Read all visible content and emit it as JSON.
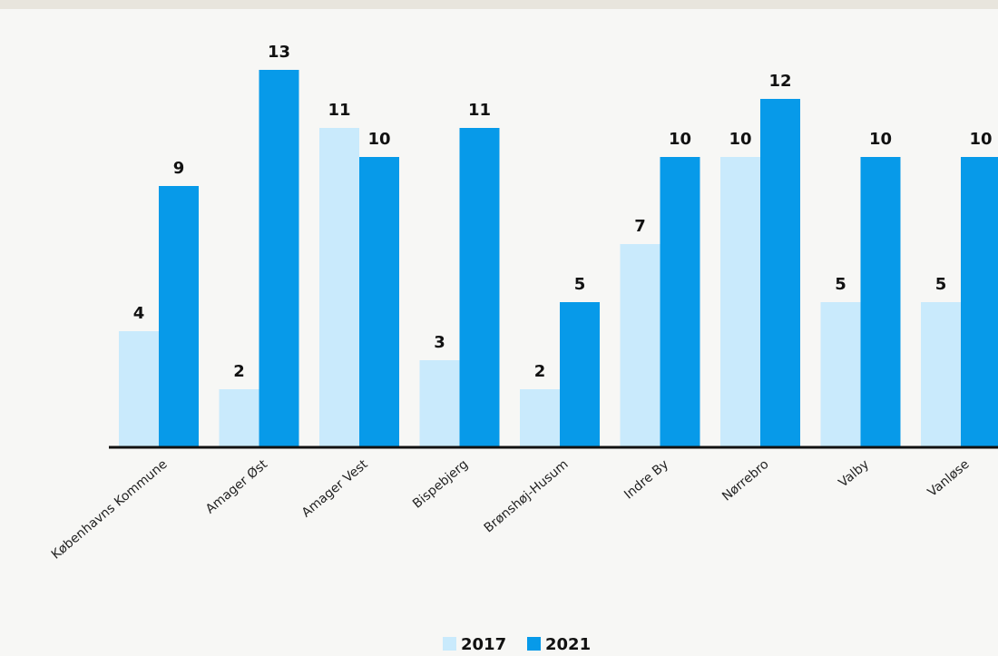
{
  "chart_data": {
    "type": "bar",
    "categories": [
      "Københavns Kommune",
      "Amager Øst",
      "Amager Vest",
      "Bispebjerg",
      "Brønshøj-Husum",
      "Indre By",
      "Nørrebro",
      "Valby",
      "Vanløse"
    ],
    "series": [
      {
        "name": "2017",
        "color": "#c9eafc",
        "values": [
          4,
          2,
          11,
          3,
          2,
          7,
          10,
          5,
          5
        ]
      },
      {
        "name": "2021",
        "color": "#079ae9",
        "values": [
          9,
          13,
          10,
          11,
          5,
          10,
          12,
          10,
          10
        ]
      }
    ],
    "ylim": [
      0,
      13
    ],
    "grid": false,
    "legend_position": "bottom-center",
    "data_labels": true
  }
}
